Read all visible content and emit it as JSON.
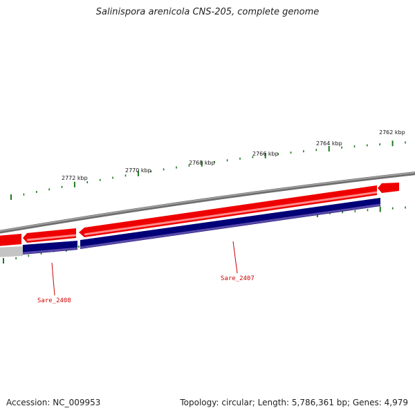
{
  "title": "Salinispora arenicola CNS-205, complete genome",
  "footer": {
    "accession": "Accession: NC_009953",
    "summary": "Topology: circular; Length: 5,786,361 bp; Genes: 4,979"
  },
  "colors": {
    "backbone": "#777777",
    "forward_cds": "#ee0000",
    "reverse_cds": "#000077",
    "tick": "#1a7a1a",
    "label": "#cc0000"
  },
  "scale_labels": [
    "2762 kbp",
    "2764 kbp",
    "2766 kbp",
    "2768 kbp",
    "2770 kbp",
    "2772 kbp"
  ],
  "genes": [
    {
      "label": "Sare_2407"
    },
    {
      "label": "Sare_2408"
    }
  ]
}
